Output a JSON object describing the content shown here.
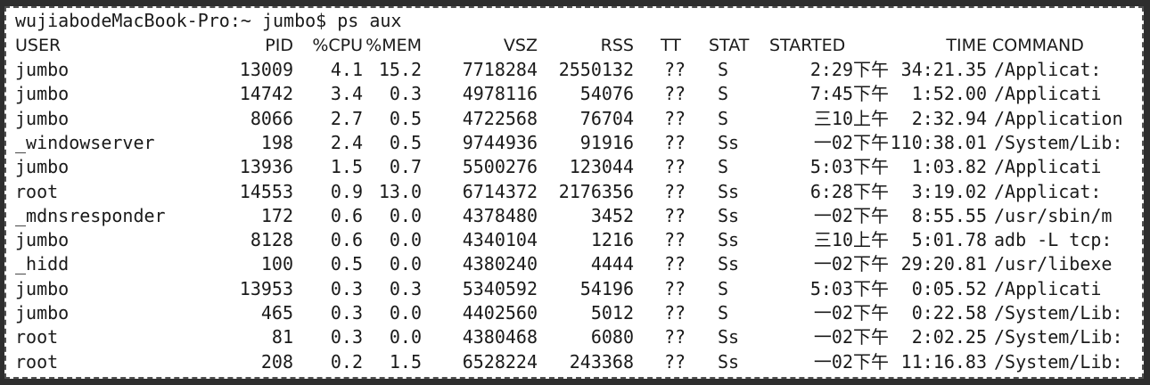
{
  "terminal": {
    "prompt": "wujiabodeMacBook-Pro:~ jumbo$ ps aux",
    "headers": [
      "USER",
      "PID",
      "%CPU",
      "%MEM",
      "VSZ",
      "RSS",
      "TT",
      "STAT",
      "STARTED",
      "TIME",
      "COMMAND"
    ],
    "rows": [
      [
        "jumbo",
        "13009",
        "4.1",
        "15.2",
        "7718284",
        "2550132",
        "??",
        "S",
        "2:29下午",
        "34:21.35",
        "/Applicat:"
      ],
      [
        "jumbo",
        "14742",
        "3.4",
        "0.3",
        "4978116",
        "54076",
        "??",
        "S",
        "7:45下午",
        "1:52.00",
        "/Applicati"
      ],
      [
        "jumbo",
        "8066",
        "2.7",
        "0.5",
        "4722568",
        "76704",
        "??",
        "S",
        "三10上午",
        "2:32.94",
        "/Application"
      ],
      [
        "_windowserver",
        "198",
        "2.4",
        "0.5",
        "9744936",
        "91916",
        "??",
        "Ss",
        "一02下午",
        "110:38.01",
        "/System/Lib:"
      ],
      [
        "jumbo",
        "13936",
        "1.5",
        "0.7",
        "5500276",
        "123044",
        "??",
        "S",
        "5:03下午",
        "1:03.82",
        "/Applicati"
      ],
      [
        "root",
        "14553",
        "0.9",
        "13.0",
        "6714372",
        "2176356",
        "??",
        "Ss",
        "6:28下午",
        "3:19.02",
        "/Applicat:"
      ],
      [
        "_mdnsresponder",
        "172",
        "0.6",
        "0.0",
        "4378480",
        "3452",
        "??",
        "Ss",
        "一02下午",
        "8:55.55",
        "/usr/sbin/m"
      ],
      [
        "jumbo",
        "8128",
        "0.6",
        "0.0",
        "4340104",
        "1216",
        "??",
        "Ss",
        "三10上午",
        "5:01.78",
        "adb -L tcp:"
      ],
      [
        "_hidd",
        "100",
        "0.5",
        "0.0",
        "4380240",
        "4444",
        "??",
        "Ss",
        "一02下午",
        "29:20.81",
        "/usr/libexe"
      ],
      [
        "jumbo",
        "13953",
        "0.3",
        "0.3",
        "5340592",
        "54196",
        "??",
        "S",
        "5:03下午",
        "0:05.52",
        "/Applicati"
      ],
      [
        "jumbo",
        "465",
        "0.3",
        "0.0",
        "4402560",
        "5012",
        "??",
        "S",
        "一02下午",
        "0:22.58",
        "/System/Lib:"
      ],
      [
        "root",
        "81",
        "0.3",
        "0.0",
        "4380468",
        "6080",
        "??",
        "Ss",
        "一02下午",
        "2:02.25",
        "/System/Lib:"
      ],
      [
        "root",
        "208",
        "0.2",
        "1.5",
        "6528224",
        "243368",
        "??",
        "Ss",
        "一02下午",
        "11:16.83",
        "/System/Lib:"
      ]
    ]
  }
}
